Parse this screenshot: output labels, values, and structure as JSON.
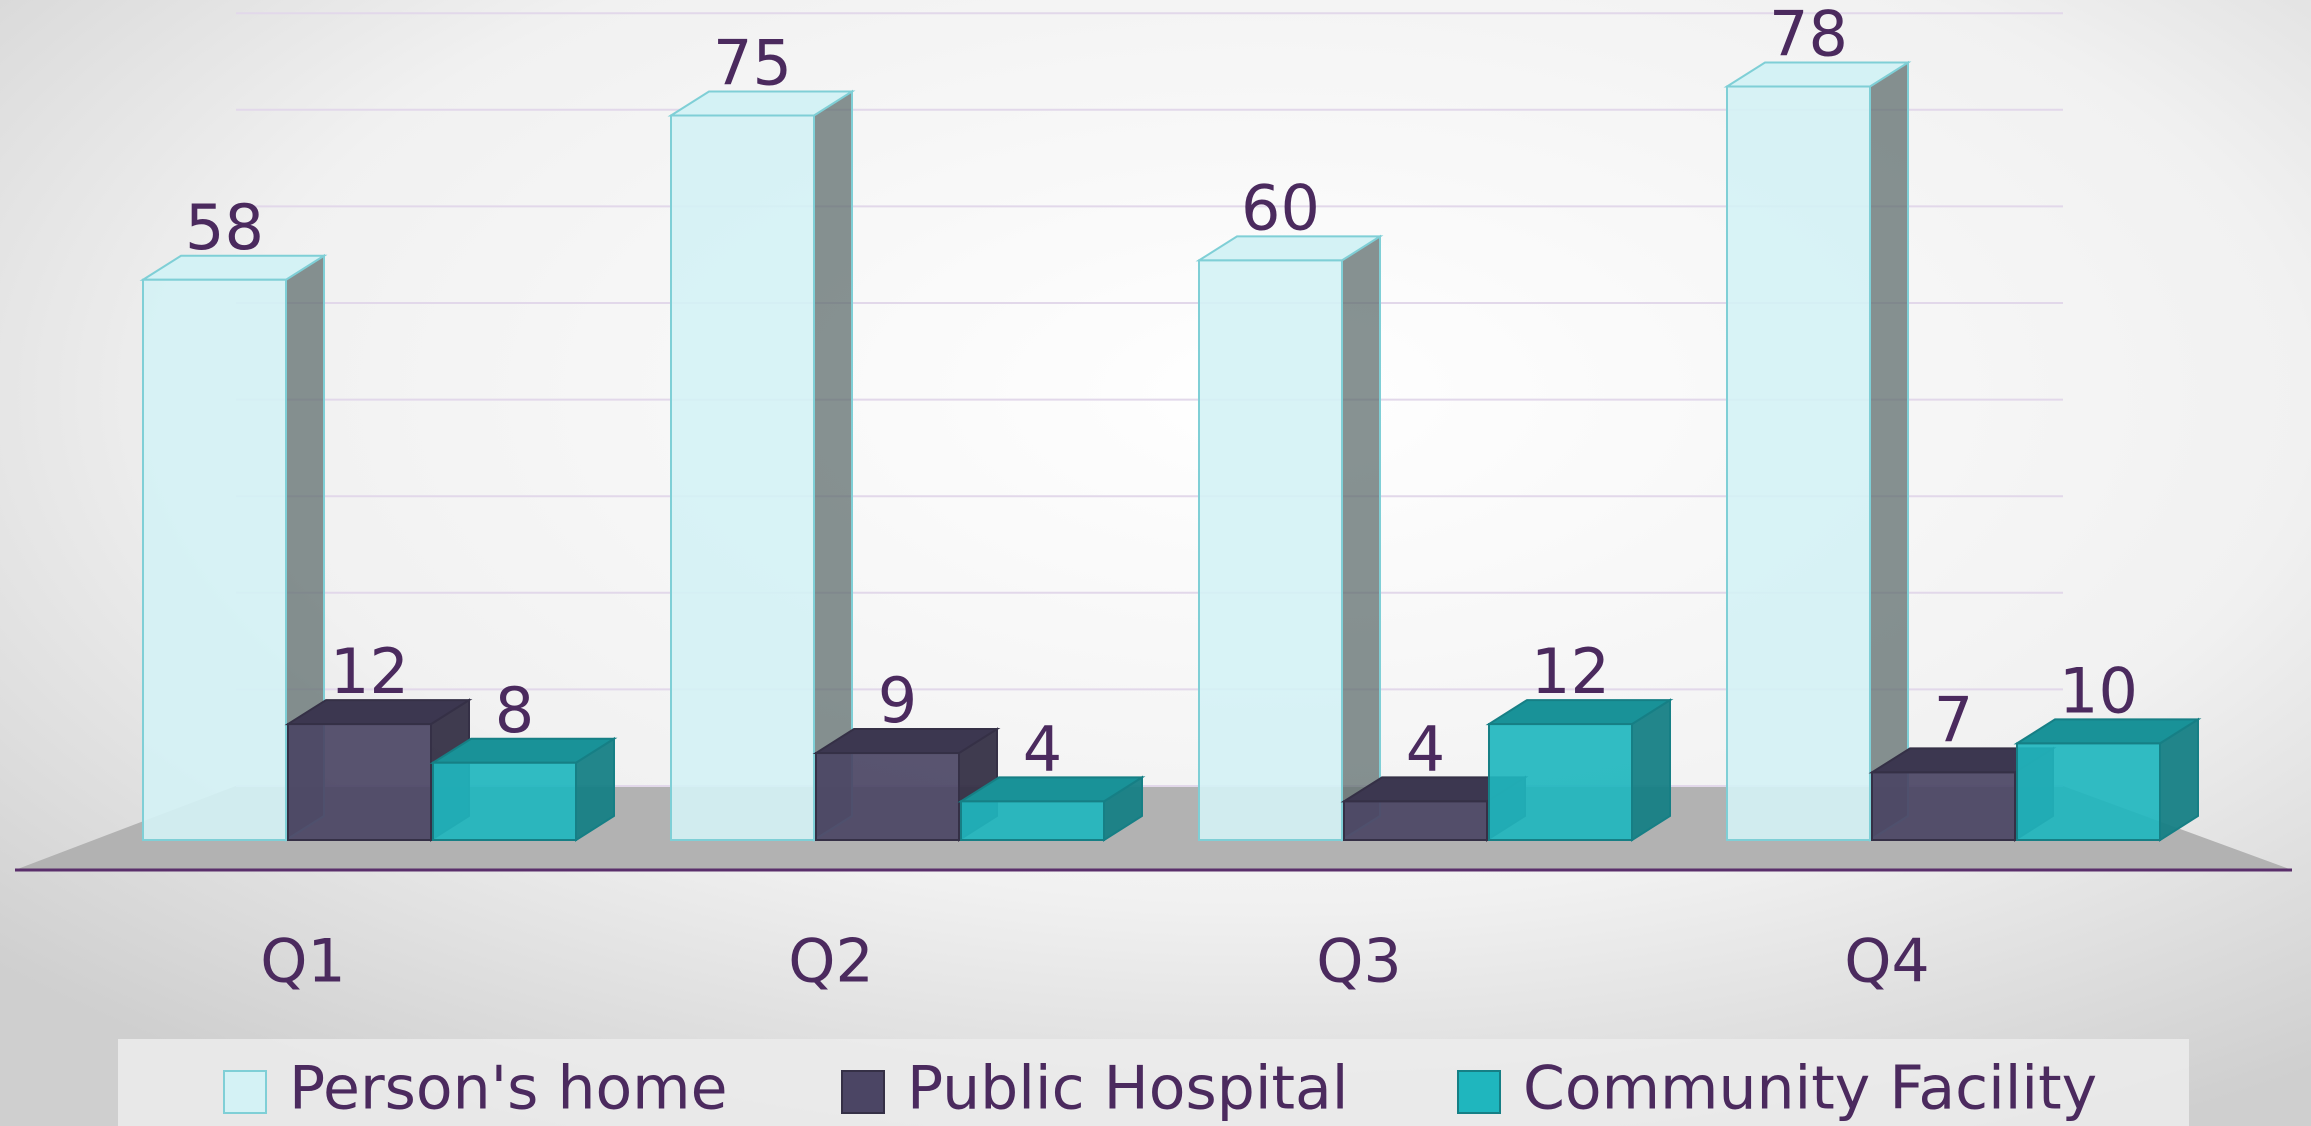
{
  "chart_data": {
    "type": "bar3d",
    "categories": [
      "Q1",
      "Q2",
      "Q3",
      "Q4"
    ],
    "series": [
      {
        "name": "Person's home",
        "color": "#d4f2f5",
        "values": [
          58,
          75,
          60,
          78
        ]
      },
      {
        "name": "Public Hospital",
        "color": "#4b4564",
        "values": [
          12,
          9,
          4,
          7
        ]
      },
      {
        "name": "Community Facility",
        "color": "#1fb6be",
        "values": [
          8,
          4,
          12,
          10
        ]
      }
    ],
    "ylim": [
      0,
      85
    ],
    "yticks": [
      0,
      10,
      20,
      30,
      40,
      50,
      60,
      70,
      80
    ],
    "grid": true,
    "legend": "bottom"
  }
}
